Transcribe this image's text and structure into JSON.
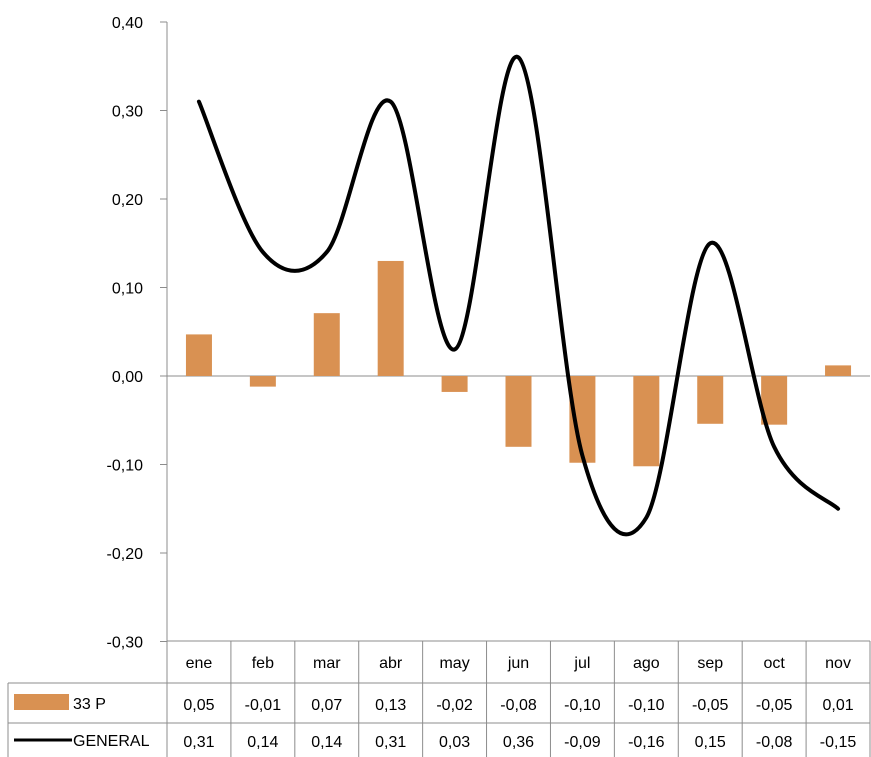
{
  "chart_data": {
    "type": "bar",
    "categories": [
      "ene",
      "feb",
      "mar",
      "abr",
      "may",
      "jun",
      "jul",
      "ago",
      "sep",
      "oct",
      "nov"
    ],
    "series": [
      {
        "name": "33 P",
        "kind": "bar",
        "color": "#D99152",
        "values": [
          0.047,
          -0.012,
          0.071,
          0.13,
          -0.018,
          -0.08,
          -0.098,
          -0.102,
          -0.054,
          -0.055,
          0.012
        ],
        "labels": [
          "0,05",
          "-0,01",
          "0,07",
          "0,13",
          "-0,02",
          "-0,08",
          "-0,10",
          "-0,10",
          "-0,05",
          "-0,05",
          "0,01"
        ]
      },
      {
        "name": "GENERAL",
        "kind": "line",
        "color": "#000000",
        "values": [
          0.31,
          0.14,
          0.14,
          0.31,
          0.03,
          0.36,
          -0.09,
          -0.16,
          0.15,
          -0.08,
          -0.15
        ],
        "labels": [
          "0,31",
          "0,14",
          "0,14",
          "0,31",
          "0,03",
          "0,36",
          "-0,09",
          "-0,16",
          "0,15",
          "-0,08",
          "-0,15"
        ]
      }
    ],
    "ylim": [
      -0.3,
      0.4
    ],
    "yticks": [
      -0.3,
      -0.2,
      -0.1,
      0.0,
      0.1,
      0.2,
      0.3,
      0.4
    ],
    "ytick_labels": [
      "-0,30",
      "-0,20",
      "-0,10",
      "0,00",
      "0,10",
      "0,20",
      "0,30",
      "0,40"
    ],
    "title": "",
    "xlabel": "",
    "ylabel": "",
    "grid": false,
    "legend": "data-table"
  }
}
